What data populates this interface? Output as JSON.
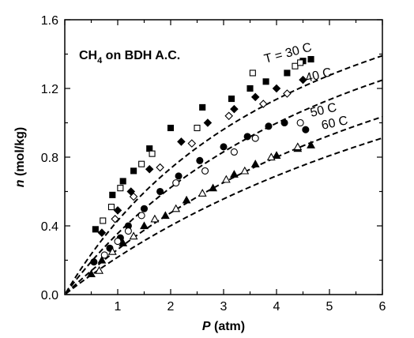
{
  "chart_data": {
    "type": "scatter",
    "title": {
      "species": "CH",
      "subscript": "4",
      "rest": " on BDH A.C."
    },
    "xlabel": {
      "symbol": "P",
      "unit": " (atm)"
    },
    "ylabel": {
      "symbol": "n",
      "unit": " (mol/kg)"
    },
    "xlim": [
      0,
      6
    ],
    "ylim": [
      0,
      1.6
    ],
    "x_ticks": [
      1,
      2,
      3,
      4,
      5,
      6
    ],
    "y_ticks": [
      "0.0",
      "0.4",
      "0.8",
      "1.2",
      "1.6"
    ],
    "grid": false,
    "series": [
      {
        "name": "T = 30 C",
        "fit_qm": 2.51,
        "fit_b": 0.207,
        "markers": [
          {
            "shape": "square",
            "fill": "filled",
            "points": [
              [
                0.58,
                0.38
              ],
              [
                0.9,
                0.58
              ],
              [
                1.1,
                0.66
              ],
              [
                1.3,
                0.72
              ],
              [
                1.6,
                0.85
              ],
              [
                2.0,
                0.97
              ],
              [
                2.6,
                1.09
              ],
              [
                3.15,
                1.14
              ],
              [
                3.5,
                1.2
              ],
              [
                3.8,
                1.24
              ],
              [
                4.2,
                1.29
              ],
              [
                4.5,
                1.36
              ],
              [
                4.65,
                1.37
              ]
            ]
          },
          {
            "shape": "square",
            "fill": "open",
            "points": [
              [
                0.72,
                0.43
              ],
              [
                0.88,
                0.51
              ],
              [
                1.05,
                0.62
              ],
              [
                1.45,
                0.76
              ],
              [
                1.65,
                0.82
              ],
              [
                2.5,
                0.97
              ],
              [
                3.55,
                1.29
              ],
              [
                4.35,
                1.33
              ],
              [
                4.45,
                1.35
              ]
            ]
          }
        ]
      },
      {
        "name": "40 C",
        "fit_qm": 2.51,
        "fit_b": 0.165,
        "markers": [
          {
            "shape": "diamond",
            "fill": "filled",
            "points": [
              [
                0.7,
                0.36
              ],
              [
                1.0,
                0.49
              ],
              [
                1.25,
                0.6
              ],
              [
                1.6,
                0.73
              ],
              [
                2.2,
                0.89
              ],
              [
                2.7,
                1.0
              ],
              [
                3.2,
                1.08
              ],
              [
                3.6,
                1.15
              ],
              [
                4.0,
                1.2
              ],
              [
                4.5,
                1.25
              ]
            ]
          },
          {
            "shape": "diamond",
            "fill": "open",
            "points": [
              [
                0.95,
                0.44
              ],
              [
                1.3,
                0.57
              ],
              [
                1.8,
                0.74
              ],
              [
                2.4,
                0.88
              ],
              [
                3.1,
                1.04
              ],
              [
                3.75,
                1.11
              ],
              [
                4.2,
                1.17
              ]
            ]
          }
        ]
      },
      {
        "name": "50 C",
        "fit_qm": 2.51,
        "fit_b": 0.117,
        "markers": [
          {
            "shape": "circle",
            "fill": "filled",
            "points": [
              [
                0.55,
                0.19
              ],
              [
                0.85,
                0.27
              ],
              [
                1.05,
                0.33
              ],
              [
                1.2,
                0.4
              ],
              [
                1.5,
                0.5
              ],
              [
                1.8,
                0.6
              ],
              [
                2.15,
                0.69
              ],
              [
                2.55,
                0.78
              ],
              [
                3.0,
                0.86
              ],
              [
                3.45,
                0.92
              ],
              [
                3.85,
                0.98
              ],
              [
                4.15,
                1.0
              ],
              [
                4.55,
                0.96
              ]
            ]
          },
          {
            "shape": "circle",
            "fill": "open",
            "points": [
              [
                0.75,
                0.23
              ],
              [
                1.0,
                0.31
              ],
              [
                1.2,
                0.37
              ],
              [
                1.45,
                0.46
              ],
              [
                2.1,
                0.65
              ],
              [
                2.65,
                0.72
              ],
              [
                3.2,
                0.83
              ],
              [
                3.6,
                0.91
              ],
              [
                4.45,
                1.0
              ]
            ]
          }
        ]
      },
      {
        "name": "60 C",
        "fit_qm": 2.51,
        "fit_b": 0.095,
        "markers": [
          {
            "shape": "triangle",
            "fill": "filled",
            "points": [
              [
                0.5,
                0.12
              ],
              [
                0.7,
                0.2
              ],
              [
                1.1,
                0.3
              ],
              [
                1.5,
                0.4
              ],
              [
                1.9,
                0.46
              ],
              [
                2.3,
                0.55
              ],
              [
                2.8,
                0.62
              ],
              [
                3.2,
                0.7
              ],
              [
                3.6,
                0.76
              ],
              [
                4.0,
                0.81
              ],
              [
                4.4,
                0.85
              ],
              [
                4.65,
                0.87
              ]
            ]
          },
          {
            "shape": "triangle",
            "fill": "open",
            "points": [
              [
                0.65,
                0.14
              ],
              [
                0.9,
                0.25
              ],
              [
                1.3,
                0.34
              ],
              [
                1.7,
                0.44
              ],
              [
                2.1,
                0.5
              ],
              [
                2.6,
                0.59
              ],
              [
                3.05,
                0.67
              ],
              [
                3.4,
                0.72
              ],
              [
                3.9,
                0.8
              ],
              [
                4.4,
                0.86
              ]
            ]
          }
        ]
      }
    ]
  }
}
